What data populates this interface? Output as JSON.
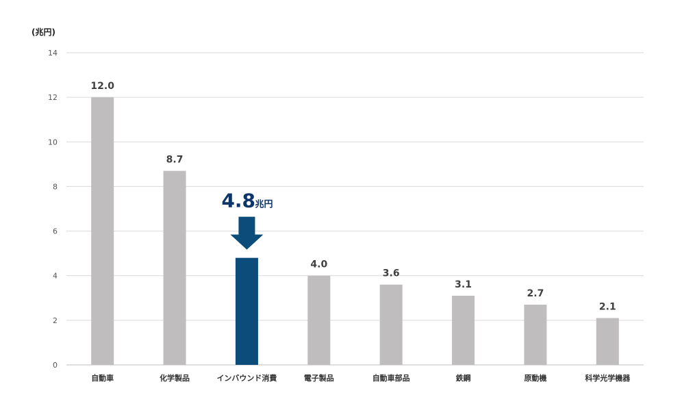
{
  "chart_data": {
    "type": "bar",
    "ylabel": "(兆円)",
    "ylim": [
      0,
      14
    ],
    "yticks": [
      0,
      2,
      4,
      6,
      8,
      10,
      12,
      14
    ],
    "grid": true,
    "categories": [
      "自動車",
      "化学製品",
      "インバウンド消費",
      "電子製品",
      "自動車部品",
      "鉄鋼",
      "原動機",
      "科学光学機器"
    ],
    "values": [
      12.0,
      8.7,
      4.8,
      4.0,
      3.6,
      3.1,
      2.7,
      2.1
    ],
    "data_labels": [
      "12.0",
      "8.7",
      "",
      "4.0",
      "3.6",
      "3.1",
      "2.7",
      "2.1"
    ],
    "highlight_index": 2,
    "colors": {
      "bar": "#bfbdbe",
      "highlight": "#0b4c7a",
      "callout": "#0d3568",
      "arrow": "#0b4c7a",
      "grid": "#d9d9d9"
    },
    "callout": {
      "value": "4.8",
      "unit": "兆円",
      "icon": "down-arrow-icon"
    }
  }
}
